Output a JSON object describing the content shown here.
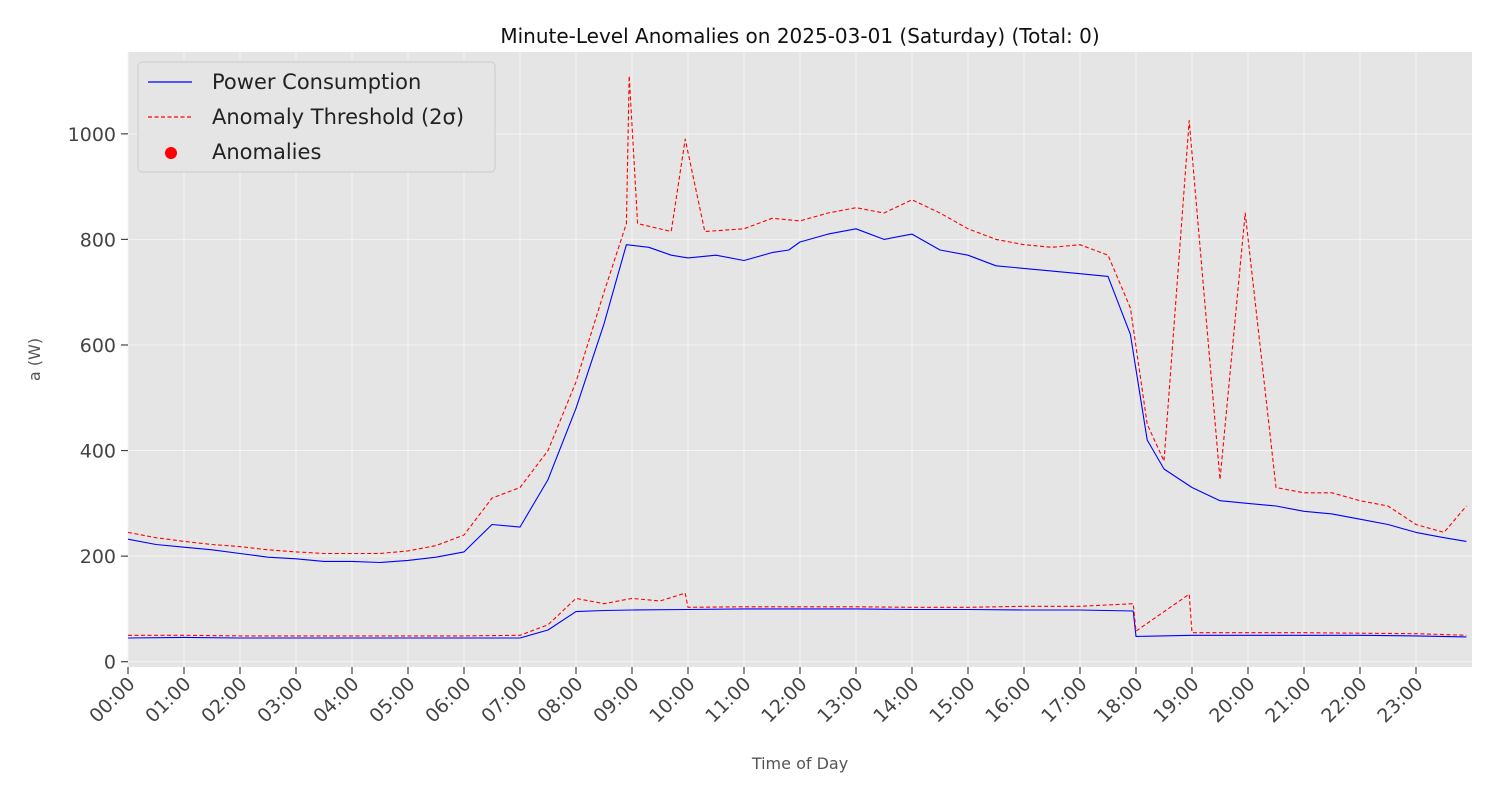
{
  "chart_data": {
    "type": "line",
    "title": "Minute-Level Anomalies on 2025-03-01 (Saturday) (Total: 0)",
    "xlabel": "Time of Day",
    "ylabel": "a (W)",
    "xlim": [
      0,
      24
    ],
    "ylim": [
      -10,
      1155
    ],
    "grid": true,
    "legend_position": "top-left",
    "x_ticks": [
      "00:00",
      "01:00",
      "02:00",
      "03:00",
      "04:00",
      "05:00",
      "06:00",
      "07:00",
      "08:00",
      "09:00",
      "10:00",
      "11:00",
      "12:00",
      "13:00",
      "14:00",
      "15:00",
      "16:00",
      "17:00",
      "18:00",
      "19:00",
      "20:00",
      "21:00",
      "22:00",
      "23:00"
    ],
    "y_ticks": [
      0,
      200,
      400,
      600,
      800,
      1000
    ],
    "legend": {
      "power": "Power Consumption",
      "threshold": "Anomaly Threshold (2σ)",
      "anomalies": "Anomalies"
    },
    "colors": {
      "power": "#0000ff",
      "threshold": "#ff0000",
      "anomalies": "#ff0000",
      "plot_bg": "#e5e5e5",
      "grid": "#f4f4f4"
    },
    "series": [
      {
        "name": "Power Consumption",
        "x": [
          0,
          0.5,
          1,
          1.5,
          2,
          2.5,
          3,
          3.5,
          4,
          4.5,
          5,
          5.5,
          6,
          6.5,
          7,
          7.5,
          8,
          8.5,
          8.9,
          9.3,
          9.7,
          10,
          10.5,
          11,
          11.5,
          11.8,
          12,
          12.5,
          13,
          13.5,
          14,
          14.5,
          15,
          15.5,
          16,
          16.5,
          17,
          17.5,
          17.9,
          18.2,
          18.5,
          19,
          19.5,
          20,
          20.5,
          21,
          21.5,
          22,
          22.5,
          23,
          23.5,
          23.9
        ],
        "values": [
          232,
          222,
          217,
          212,
          205,
          198,
          195,
          190,
          190,
          188,
          192,
          198,
          208,
          260,
          255,
          345,
          480,
          640,
          790,
          785,
          770,
          765,
          770,
          760,
          775,
          780,
          795,
          810,
          820,
          800,
          810,
          780,
          770,
          750,
          745,
          740,
          735,
          730,
          620,
          420,
          365,
          330,
          305,
          300,
          295,
          285,
          280,
          270,
          260,
          245,
          235,
          228
        ]
      },
      {
        "name": "Anomaly Threshold (2σ)",
        "x": [
          0,
          0.5,
          1,
          1.5,
          2,
          2.5,
          3,
          3.5,
          4,
          4.5,
          5,
          5.5,
          6,
          6.5,
          7,
          7.5,
          8,
          8.5,
          8.9,
          8.95,
          9.1,
          9.7,
          9.95,
          10.3,
          11,
          11.5,
          12,
          12.5,
          13,
          13.5,
          14,
          14.5,
          15,
          15.5,
          16,
          16.5,
          17,
          17.5,
          17.9,
          18.2,
          18.5,
          18.95,
          19.5,
          19.95,
          20.5,
          21,
          21.5,
          22,
          22.5,
          23,
          23.5,
          23.9
        ],
        "values": [
          245,
          235,
          228,
          222,
          218,
          212,
          208,
          205,
          205,
          205,
          210,
          220,
          240,
          310,
          330,
          400,
          530,
          700,
          830,
          1110,
          830,
          815,
          990,
          815,
          820,
          840,
          835,
          850,
          860,
          850,
          875,
          850,
          820,
          800,
          790,
          785,
          790,
          770,
          670,
          450,
          380,
          1025,
          345,
          850,
          330,
          320,
          320,
          305,
          295,
          260,
          245,
          295
        ]
      },
      {
        "name": "Power Consumption",
        "x": [
          0,
          1,
          2,
          3,
          4,
          5,
          6,
          7,
          7.5,
          8,
          8.5,
          9,
          10,
          11,
          12,
          13,
          14,
          15,
          16,
          17,
          17.95,
          18,
          19,
          20,
          21,
          22,
          23,
          23.9
        ],
        "values": [
          45,
          46,
          45,
          45,
          45,
          45,
          45,
          45,
          60,
          95,
          97,
          98,
          99,
          100,
          100,
          100,
          99,
          99,
          98,
          98,
          96,
          48,
          50,
          50,
          50,
          50,
          49,
          47
        ]
      },
      {
        "name": "Anomaly Threshold (2σ)",
        "x": [
          0,
          1,
          2,
          3,
          4,
          5,
          6,
          7,
          7.5,
          8,
          8.5,
          9,
          9.5,
          9.95,
          10,
          11,
          12,
          13,
          14,
          15,
          16,
          17,
          17.95,
          18,
          18.95,
          19,
          20,
          21,
          22,
          23,
          23.9
        ],
        "values": [
          50,
          50,
          49,
          49,
          49,
          49,
          49,
          50,
          70,
          120,
          110,
          120,
          115,
          130,
          103,
          104,
          104,
          104,
          103,
          103,
          105,
          105,
          110,
          58,
          128,
          55,
          55,
          55,
          54,
          53,
          50
        ]
      }
    ],
    "anomaly_points": []
  }
}
